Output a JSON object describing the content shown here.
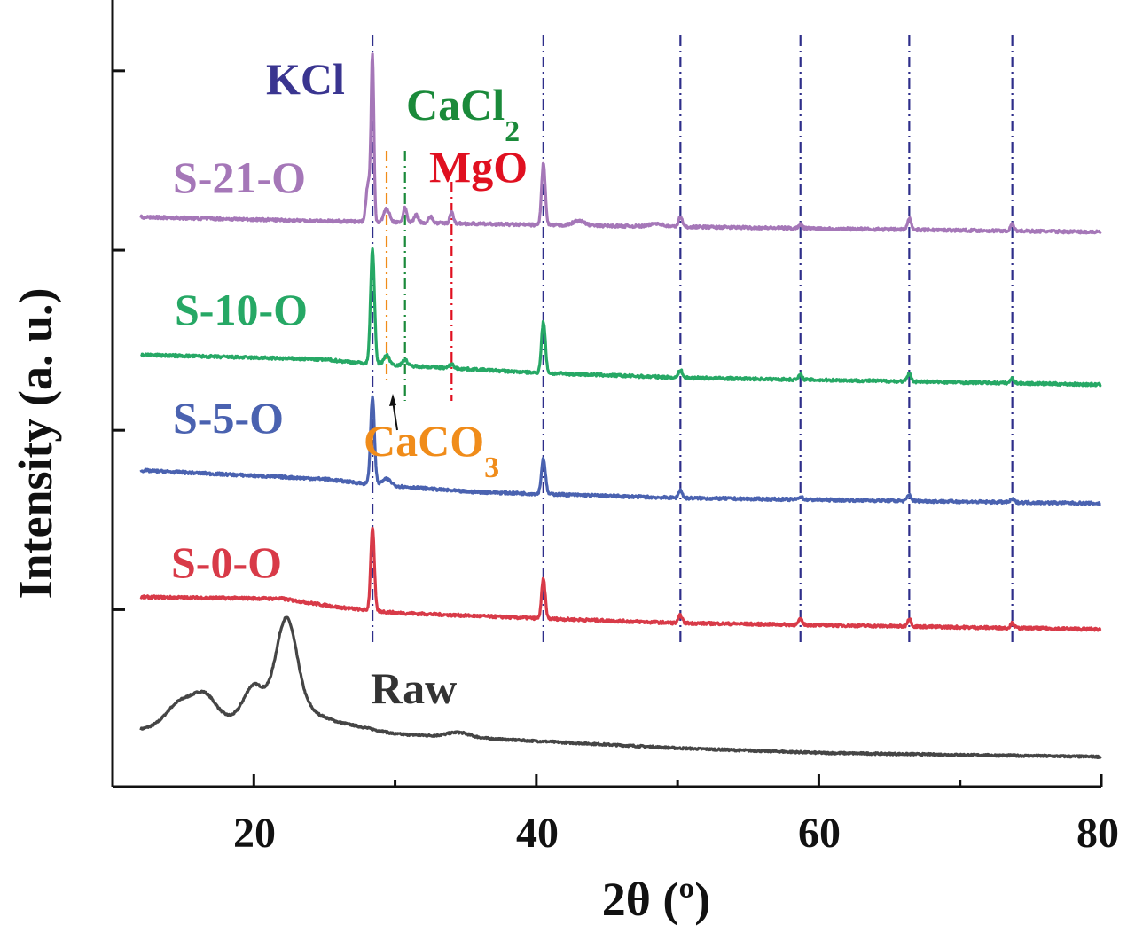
{
  "chart_data": {
    "type": "line",
    "xlabel": "2θ  (º)",
    "ylabel": "Intensity (a. u.)",
    "xlim": [
      10,
      80
    ],
    "ylim": [
      0,
      100
    ],
    "x_ticks": [
      "20",
      "40",
      "60",
      "80"
    ],
    "y_ticks_labeled": false,
    "grid": false,
    "series": [
      {
        "name": "Raw",
        "color": "#454545",
        "baseline": [
          [
            12,
            7.3
          ],
          [
            14,
            8
          ],
          [
            24,
            9.5
          ],
          [
            26,
            8.2
          ],
          [
            30,
            6.7
          ],
          [
            40,
            5.8
          ],
          [
            50,
            4.9
          ],
          [
            60,
            4.3
          ],
          [
            80,
            3.8
          ]
        ],
        "peaks": [
          [
            14.8,
            2.6,
            0.9
          ],
          [
            16.5,
            3.2,
            0.8
          ],
          [
            20.0,
            4.0,
            0.7
          ],
          [
            22.3,
            12.2,
            0.75
          ],
          [
            34.5,
            0.6,
            0.8
          ]
        ]
      },
      {
        "name": "S-0-O",
        "color": "#d83a48",
        "baseline": [
          [
            12,
            24.1
          ],
          [
            22,
            23.9
          ],
          [
            26,
            22.8
          ],
          [
            30,
            22.1
          ],
          [
            40,
            21.4
          ],
          [
            50,
            20.8
          ],
          [
            80,
            20.0
          ]
        ],
        "peaks": [
          [
            28.4,
            10.5,
            0.13
          ],
          [
            40.5,
            5.0,
            0.13
          ],
          [
            50.2,
            1.0,
            0.13
          ],
          [
            58.7,
            0.7,
            0.13
          ],
          [
            66.4,
            1.0,
            0.13
          ],
          [
            73.7,
            0.6,
            0.13
          ]
        ]
      },
      {
        "name": "S-5-O",
        "color": "#4a62b0",
        "baseline": [
          [
            12,
            40.2
          ],
          [
            25,
            39.1
          ],
          [
            28,
            38.5
          ],
          [
            35,
            37.5
          ],
          [
            50,
            36.7
          ],
          [
            80,
            36.0
          ]
        ],
        "peaks": [
          [
            28.4,
            11.0,
            0.14
          ],
          [
            29.4,
            0.8,
            0.3
          ],
          [
            40.5,
            4.5,
            0.14
          ],
          [
            50.2,
            1.0,
            0.13
          ],
          [
            58.7,
            0.4,
            0.13
          ],
          [
            66.4,
            0.8,
            0.13
          ],
          [
            73.7,
            0.4,
            0.13
          ]
        ]
      },
      {
        "name": "S-10-O",
        "color": "#26a865",
        "baseline": [
          [
            12,
            54.9
          ],
          [
            25,
            54.3
          ],
          [
            28,
            53.8
          ],
          [
            40,
            52.6
          ],
          [
            50,
            52.0
          ],
          [
            80,
            51.1
          ]
        ],
        "peaks": [
          [
            28.4,
            14.5,
            0.14
          ],
          [
            29.4,
            1.2,
            0.2
          ],
          [
            30.7,
            0.8,
            0.15
          ],
          [
            34.0,
            0.5,
            0.15
          ],
          [
            40.5,
            6.5,
            0.14
          ],
          [
            50.2,
            1.0,
            0.13
          ],
          [
            58.7,
            0.6,
            0.13
          ],
          [
            66.4,
            1.0,
            0.13
          ],
          [
            73.7,
            0.6,
            0.13
          ]
        ]
      },
      {
        "name": "S-21-O",
        "color": "#a577b8",
        "baseline": [
          [
            12,
            72.4
          ],
          [
            28,
            71.8
          ],
          [
            40,
            71.4
          ],
          [
            80,
            70.5
          ]
        ],
        "peaks": [
          [
            28.1,
            5.0,
            0.15
          ],
          [
            28.4,
            20.6,
            0.1
          ],
          [
            29.4,
            1.7,
            0.2
          ],
          [
            30.7,
            2.0,
            0.12
          ],
          [
            31.5,
            1.0,
            0.15
          ],
          [
            32.5,
            0.8,
            0.15
          ],
          [
            34.0,
            1.5,
            0.12
          ],
          [
            40.5,
            7.8,
            0.13
          ],
          [
            43.0,
            0.6,
            0.4
          ],
          [
            48.5,
            0.4,
            0.4
          ],
          [
            50.2,
            1.3,
            0.13
          ],
          [
            58.7,
            0.5,
            0.13
          ],
          [
            66.4,
            1.5,
            0.13
          ],
          [
            73.7,
            0.8,
            0.13
          ]
        ]
      }
    ],
    "reference_lines": [
      {
        "phase": "KCl",
        "color": "#2e2e8a",
        "x": [
          28.4,
          40.5,
          50.2,
          58.7,
          66.4,
          73.7
        ]
      },
      {
        "phase": "CaCO3",
        "color": "#f08c1a",
        "x": [
          29.4
        ]
      },
      {
        "phase": "CaCl2",
        "color": "#1a8a3a",
        "x": [
          30.7
        ]
      },
      {
        "phase": "MgO",
        "color": "#e01020",
        "x": [
          34.0
        ]
      }
    ],
    "annotations": {
      "kcl": "KCl",
      "cacl2_main": "CaCl",
      "cacl2_sub": "2",
      "mgo": "MgO",
      "caco3_main": "CaCO",
      "caco3_sub": "3"
    }
  }
}
